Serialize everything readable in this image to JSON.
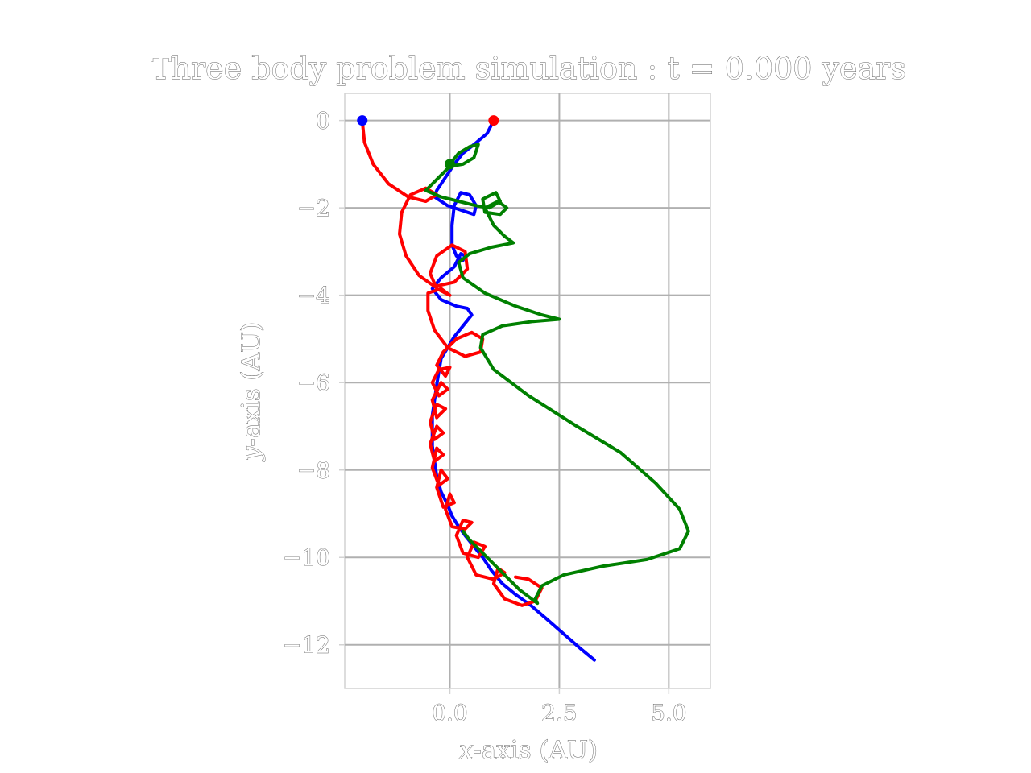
{
  "chart_data": {
    "type": "line",
    "title": "Three body problem simulation : t = 0.000 years",
    "xlabel": "x-axis (AU)",
    "ylabel": "y-axis (AU)",
    "xlim": [
      -2.4,
      5.95
    ],
    "ylim": [
      -13.0,
      0.62
    ],
    "xticks": [
      0.0,
      2.5,
      5.0
    ],
    "xtick_labels": [
      "0.0",
      "2.5",
      "5.0"
    ],
    "yticks": [
      0,
      -2,
      -4,
      -6,
      -8,
      -10,
      -12
    ],
    "ytick_labels": [
      "0",
      "−2",
      "−4",
      "−6",
      "−8",
      "−10",
      "−12"
    ],
    "grid": true,
    "series": [
      {
        "color": "#0000ff",
        "marker": [
          -2.0,
          0.0
        ],
        "points": [
          [
            1.0,
            0.0
          ],
          [
            0.85,
            -0.3
          ],
          [
            0.55,
            -0.55
          ],
          [
            0.3,
            -0.75
          ],
          [
            0.1,
            -1.0
          ],
          [
            -0.1,
            -1.3
          ],
          [
            -0.3,
            -1.6
          ],
          [
            -0.35,
            -1.75
          ],
          [
            -0.05,
            -1.95
          ],
          [
            0.25,
            -2.05
          ],
          [
            0.55,
            -2.15
          ],
          [
            0.6,
            -1.95
          ],
          [
            0.45,
            -1.7
          ],
          [
            0.25,
            -1.65
          ],
          [
            0.1,
            -1.95
          ],
          [
            0.05,
            -2.4
          ],
          [
            0.05,
            -2.85
          ],
          [
            0.15,
            -3.1
          ],
          [
            0.3,
            -3.2
          ],
          [
            0.35,
            -3.1
          ],
          [
            0.25,
            -3.05
          ],
          [
            0.1,
            -3.35
          ],
          [
            -0.2,
            -3.6
          ],
          [
            -0.4,
            -3.85
          ],
          [
            -0.2,
            -4.1
          ],
          [
            0.15,
            -4.25
          ],
          [
            0.4,
            -4.3
          ],
          [
            0.5,
            -4.45
          ],
          [
            0.3,
            -4.7
          ],
          [
            0.1,
            -4.95
          ],
          [
            -0.05,
            -5.2
          ],
          [
            -0.2,
            -5.45
          ],
          [
            -0.25,
            -5.75
          ],
          [
            -0.3,
            -6.05
          ],
          [
            -0.35,
            -6.4
          ],
          [
            -0.4,
            -6.75
          ],
          [
            -0.4,
            -7.1
          ],
          [
            -0.4,
            -7.45
          ],
          [
            -0.35,
            -7.8
          ],
          [
            -0.3,
            -8.15
          ],
          [
            -0.2,
            -8.5
          ],
          [
            -0.05,
            -8.8
          ],
          [
            0.05,
            -9.05
          ],
          [
            0.2,
            -9.3
          ],
          [
            0.35,
            -9.5
          ],
          [
            0.55,
            -9.75
          ],
          [
            0.75,
            -10.0
          ],
          [
            0.95,
            -10.3
          ],
          [
            1.2,
            -10.6
          ],
          [
            1.5,
            -10.85
          ],
          [
            1.85,
            -11.1
          ],
          [
            2.2,
            -11.4
          ],
          [
            2.6,
            -11.75
          ],
          [
            3.0,
            -12.1
          ],
          [
            3.3,
            -12.35
          ]
        ]
      },
      {
        "color": "#ff0000",
        "marker": [
          1.0,
          0.0
        ],
        "points": [
          [
            -2.0,
            0.0
          ],
          [
            -1.95,
            -0.5
          ],
          [
            -1.75,
            -1.0
          ],
          [
            -1.4,
            -1.45
          ],
          [
            -0.95,
            -1.75
          ],
          [
            -0.55,
            -1.85
          ],
          [
            -0.3,
            -1.7
          ],
          [
            -0.55,
            -1.55
          ],
          [
            -0.9,
            -1.7
          ],
          [
            -1.1,
            -2.1
          ],
          [
            -1.15,
            -2.6
          ],
          [
            -1.0,
            -3.1
          ],
          [
            -0.7,
            -3.55
          ],
          [
            -0.35,
            -3.8
          ],
          [
            0.1,
            -3.7
          ],
          [
            0.4,
            -3.4
          ],
          [
            0.35,
            -3.0
          ],
          [
            0.05,
            -2.85
          ],
          [
            -0.3,
            -3.1
          ],
          [
            -0.45,
            -3.5
          ],
          [
            -0.3,
            -3.85
          ],
          [
            0.0,
            -4.0
          ],
          [
            -0.2,
            -3.85
          ],
          [
            -0.5,
            -3.95
          ],
          [
            -0.5,
            -4.35
          ],
          [
            -0.35,
            -4.8
          ],
          [
            -0.05,
            -5.2
          ],
          [
            0.35,
            -5.4
          ],
          [
            0.7,
            -5.3
          ],
          [
            0.75,
            -5.0
          ],
          [
            0.5,
            -4.85
          ],
          [
            0.15,
            -5.0
          ],
          [
            -0.15,
            -5.3
          ],
          [
            -0.3,
            -5.6
          ],
          [
            -0.1,
            -5.85
          ],
          [
            0.0,
            -5.65
          ],
          [
            -0.25,
            -5.7
          ],
          [
            -0.4,
            -6.0
          ],
          [
            -0.25,
            -6.3
          ],
          [
            -0.05,
            -6.15
          ],
          [
            -0.2,
            -6.0
          ],
          [
            -0.4,
            -6.4
          ],
          [
            -0.3,
            -6.8
          ],
          [
            -0.1,
            -6.6
          ],
          [
            -0.3,
            -6.5
          ],
          [
            -0.45,
            -6.9
          ],
          [
            -0.35,
            -7.3
          ],
          [
            -0.15,
            -7.15
          ],
          [
            -0.3,
            -7.0
          ],
          [
            -0.45,
            -7.4
          ],
          [
            -0.35,
            -7.8
          ],
          [
            -0.15,
            -7.65
          ],
          [
            -0.3,
            -7.5
          ],
          [
            -0.4,
            -7.95
          ],
          [
            -0.25,
            -8.35
          ],
          [
            -0.05,
            -8.2
          ],
          [
            -0.2,
            -8.0
          ],
          [
            -0.3,
            -8.4
          ],
          [
            -0.15,
            -8.85
          ],
          [
            0.1,
            -8.75
          ],
          [
            0.0,
            -8.55
          ],
          [
            -0.1,
            -8.9
          ],
          [
            0.05,
            -9.3
          ],
          [
            0.35,
            -9.35
          ],
          [
            0.5,
            -9.2
          ],
          [
            0.3,
            -9.15
          ],
          [
            0.15,
            -9.5
          ],
          [
            0.3,
            -9.9
          ],
          [
            0.65,
            -10.0
          ],
          [
            0.8,
            -9.75
          ],
          [
            0.55,
            -9.65
          ],
          [
            0.4,
            -10.0
          ],
          [
            0.6,
            -10.4
          ],
          [
            1.0,
            -10.5
          ],
          [
            1.25,
            -10.35
          ],
          [
            1.1,
            -10.25
          ],
          [
            1.0,
            -10.6
          ],
          [
            1.25,
            -10.95
          ],
          [
            1.65,
            -11.1
          ],
          [
            1.95,
            -11.0
          ],
          [
            2.1,
            -10.7
          ],
          [
            1.8,
            -10.5
          ],
          [
            1.5,
            -10.45
          ]
        ]
      },
      {
        "color": "#008000",
        "marker": [
          0.0,
          -1.0
        ],
        "points": [
          [
            0.0,
            -1.0
          ],
          [
            0.2,
            -0.75
          ],
          [
            0.45,
            -0.6
          ],
          [
            0.65,
            -0.55
          ],
          [
            0.55,
            -0.85
          ],
          [
            0.3,
            -1.0
          ],
          [
            0.0,
            -1.05
          ],
          [
            -0.3,
            -1.35
          ],
          [
            -0.55,
            -1.6
          ],
          [
            -0.2,
            -1.75
          ],
          [
            0.2,
            -1.85
          ],
          [
            0.6,
            -1.95
          ],
          [
            0.9,
            -2.0
          ],
          [
            1.15,
            -1.85
          ],
          [
            1.05,
            -1.65
          ],
          [
            0.75,
            -1.8
          ],
          [
            0.8,
            -2.1
          ],
          [
            1.15,
            -2.15
          ],
          [
            1.3,
            -2.0
          ],
          [
            1.1,
            -1.85
          ],
          [
            0.8,
            -2.0
          ],
          [
            1.0,
            -2.4
          ],
          [
            1.25,
            -2.65
          ],
          [
            1.45,
            -2.8
          ],
          [
            0.95,
            -2.9
          ],
          [
            0.45,
            -3.05
          ],
          [
            0.2,
            -3.25
          ],
          [
            0.3,
            -3.6
          ],
          [
            0.8,
            -3.95
          ],
          [
            1.5,
            -4.25
          ],
          [
            2.1,
            -4.45
          ],
          [
            2.5,
            -4.55
          ],
          [
            1.9,
            -4.6
          ],
          [
            1.2,
            -4.7
          ],
          [
            0.75,
            -4.9
          ],
          [
            0.7,
            -5.2
          ],
          [
            1.0,
            -5.7
          ],
          [
            1.8,
            -6.3
          ],
          [
            2.9,
            -7.0
          ],
          [
            3.9,
            -7.6
          ],
          [
            4.7,
            -8.3
          ],
          [
            5.25,
            -8.9
          ],
          [
            5.45,
            -9.4
          ],
          [
            5.25,
            -9.8
          ],
          [
            4.5,
            -10.05
          ],
          [
            3.5,
            -10.2
          ],
          [
            2.6,
            -10.4
          ],
          [
            2.1,
            -10.65
          ],
          [
            1.95,
            -10.95
          ],
          [
            2.0,
            -11.05
          ],
          [
            1.6,
            -10.75
          ],
          [
            1.2,
            -10.35
          ],
          [
            0.8,
            -9.95
          ],
          [
            0.45,
            -9.6
          ],
          [
            0.3,
            -9.4
          ]
        ]
      }
    ]
  }
}
